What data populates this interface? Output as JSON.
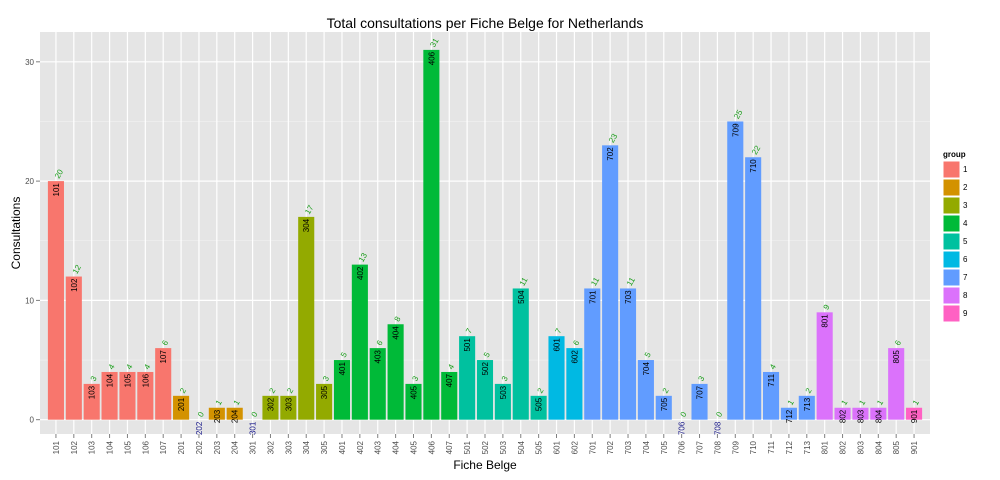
{
  "chart_data": {
    "type": "bar",
    "title": "Total consultations per Fiche Belge for Netherlands",
    "xlabel": "Fiche Belge",
    "ylabel": "Consultations",
    "ylim": [
      -1.2,
      32.5
    ],
    "yticks": [
      0,
      10,
      20,
      30
    ],
    "categories": [
      "101",
      "102",
      "103",
      "104",
      "105",
      "106",
      "107",
      "201",
      "202",
      "203",
      "204",
      "301",
      "302",
      "303",
      "304",
      "305",
      "401",
      "402",
      "403",
      "404",
      "405",
      "406",
      "407",
      "501",
      "502",
      "503",
      "504",
      "505",
      "601",
      "602",
      "701",
      "702",
      "703",
      "704",
      "705",
      "706",
      "707",
      "708",
      "709",
      "710",
      "711",
      "712",
      "713",
      "801",
      "802",
      "803",
      "804",
      "805",
      "901"
    ],
    "values": [
      20,
      12,
      3,
      4,
      4,
      4,
      6,
      2,
      0,
      1,
      1,
      0,
      2,
      2,
      17,
      3,
      5,
      13,
      6,
      8,
      3,
      31,
      4,
      7,
      5,
      3,
      11,
      2,
      7,
      6,
      11,
      23,
      11,
      5,
      2,
      0,
      3,
      0,
      25,
      22,
      4,
      1,
      2,
      9,
      1,
      1,
      1,
      6,
      1
    ],
    "groups": [
      1,
      1,
      1,
      1,
      1,
      1,
      1,
      2,
      2,
      2,
      2,
      3,
      3,
      3,
      3,
      3,
      4,
      4,
      4,
      4,
      4,
      4,
      4,
      5,
      5,
      5,
      5,
      5,
      6,
      6,
      7,
      7,
      7,
      7,
      7,
      7,
      7,
      7,
      7,
      7,
      7,
      7,
      7,
      8,
      8,
      8,
      8,
      8,
      9
    ],
    "legend": {
      "title": "group",
      "placement": "right",
      "entries": [
        {
          "label": "1",
          "color": "#F8766D"
        },
        {
          "label": "2",
          "color": "#D39200"
        },
        {
          "label": "3",
          "color": "#93AA00"
        },
        {
          "label": "4",
          "color": "#00BA38"
        },
        {
          "label": "5",
          "color": "#00C19F"
        },
        {
          "label": "6",
          "color": "#00B9E3"
        },
        {
          "label": "7",
          "color": "#619CFF"
        },
        {
          "label": "8",
          "color": "#DB72FB"
        },
        {
          "label": "9",
          "color": "#FF61C3"
        }
      ]
    },
    "grid": true
  }
}
